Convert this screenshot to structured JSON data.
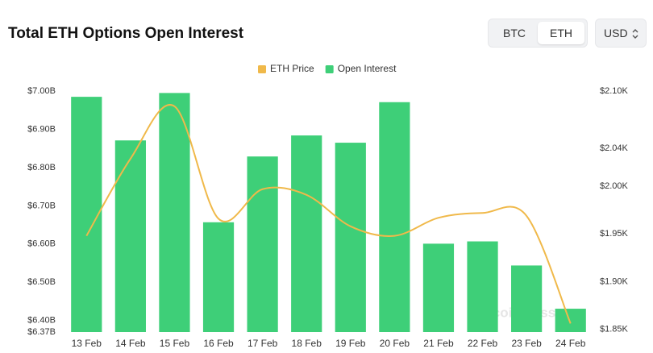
{
  "ui": {
    "coins": [
      "BTC",
      "ETH"
    ],
    "currency": "USD",
    "watermark": "coinglass"
  },
  "chart_data": {
    "type": "bar",
    "title": "Total ETH Options Open Interest",
    "categories": [
      "13 Feb",
      "14 Feb",
      "15 Feb",
      "16 Feb",
      "17 Feb",
      "18 Feb",
      "19 Feb",
      "20 Feb",
      "21 Feb",
      "22 Feb",
      "23 Feb",
      "24 Feb"
    ],
    "series": [
      {
        "name": "ETH Price",
        "type": "line",
        "axis": "y2",
        "color": "#f0b94a",
        "values": [
          1.948,
          2.029,
          2.084,
          1.966,
          1.997,
          1.991,
          1.958,
          1.948,
          1.967,
          1.972,
          1.969,
          1.856
        ]
      },
      {
        "name": "Open Interest",
        "type": "bar",
        "color": "#3ecf78",
        "values": [
          6.985,
          6.871,
          6.995,
          6.657,
          6.829,
          6.884,
          6.865,
          6.971,
          6.601,
          6.607,
          6.544,
          6.431
        ]
      }
    ],
    "ylim": [
      6.37,
      7.0
    ],
    "yticks": [
      {
        "value": 6.37,
        "label": "$6.37B"
      },
      {
        "value": 6.4,
        "label": "$6.40B"
      },
      {
        "value": 6.5,
        "label": "$6.50B"
      },
      {
        "value": 6.6,
        "label": "$6.60B"
      },
      {
        "value": 6.7,
        "label": "$6.70B"
      },
      {
        "value": 6.8,
        "label": "$6.80B"
      },
      {
        "value": 6.9,
        "label": "$6.90B"
      },
      {
        "value": 7.0,
        "label": "$7.00B"
      }
    ],
    "y2lim": [
      1.847,
      2.1
    ],
    "y2ticks": [
      {
        "value": 1.85,
        "label": "$1.85K"
      },
      {
        "value": 1.9,
        "label": "$1.90K"
      },
      {
        "value": 1.95,
        "label": "$1.95K"
      },
      {
        "value": 2.0,
        "label": "$2.00K"
      },
      {
        "value": 2.04,
        "label": "$2.04K"
      },
      {
        "value": 2.1,
        "label": "$2.10K"
      }
    ],
    "grid": false
  }
}
